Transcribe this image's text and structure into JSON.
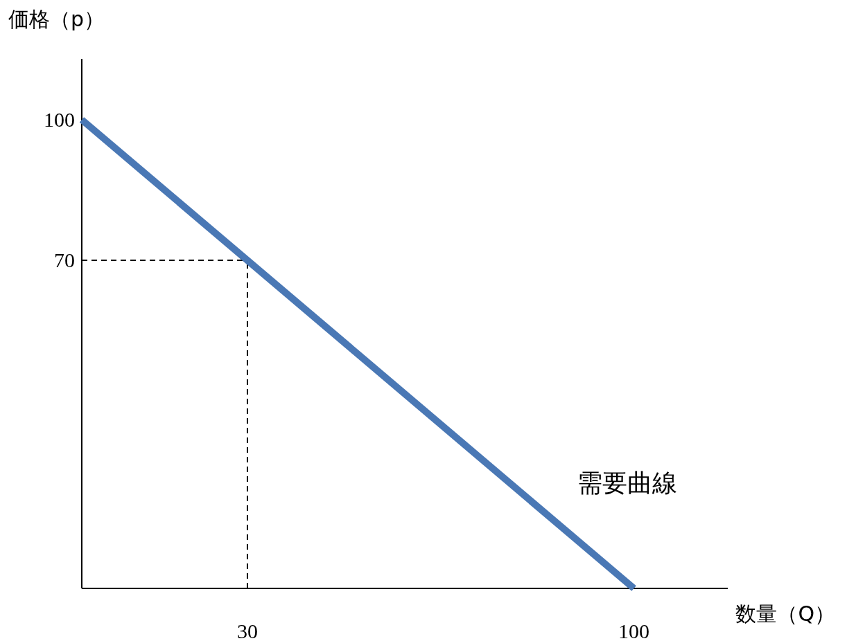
{
  "chart_data": {
    "type": "line",
    "xlabel": "数量（Q）",
    "ylabel": "価格（p）",
    "x": [
      0,
      100
    ],
    "series": [
      {
        "name": "需要曲線",
        "color": "#4a78b5",
        "values": [
          100,
          0
        ]
      }
    ],
    "xlim": [
      0,
      117
    ],
    "ylim": [
      0,
      113
    ],
    "xticks": [
      30,
      100
    ],
    "yticks": [
      70,
      100
    ],
    "grid": false,
    "marker": "none",
    "line_style": "solid",
    "ref_lines": [
      {
        "axis": "x",
        "value": 30,
        "line_style": "dashed",
        "color": "#000000"
      },
      {
        "axis": "y",
        "value": 70,
        "line_style": "dashed",
        "color": "#000000"
      }
    ]
  }
}
